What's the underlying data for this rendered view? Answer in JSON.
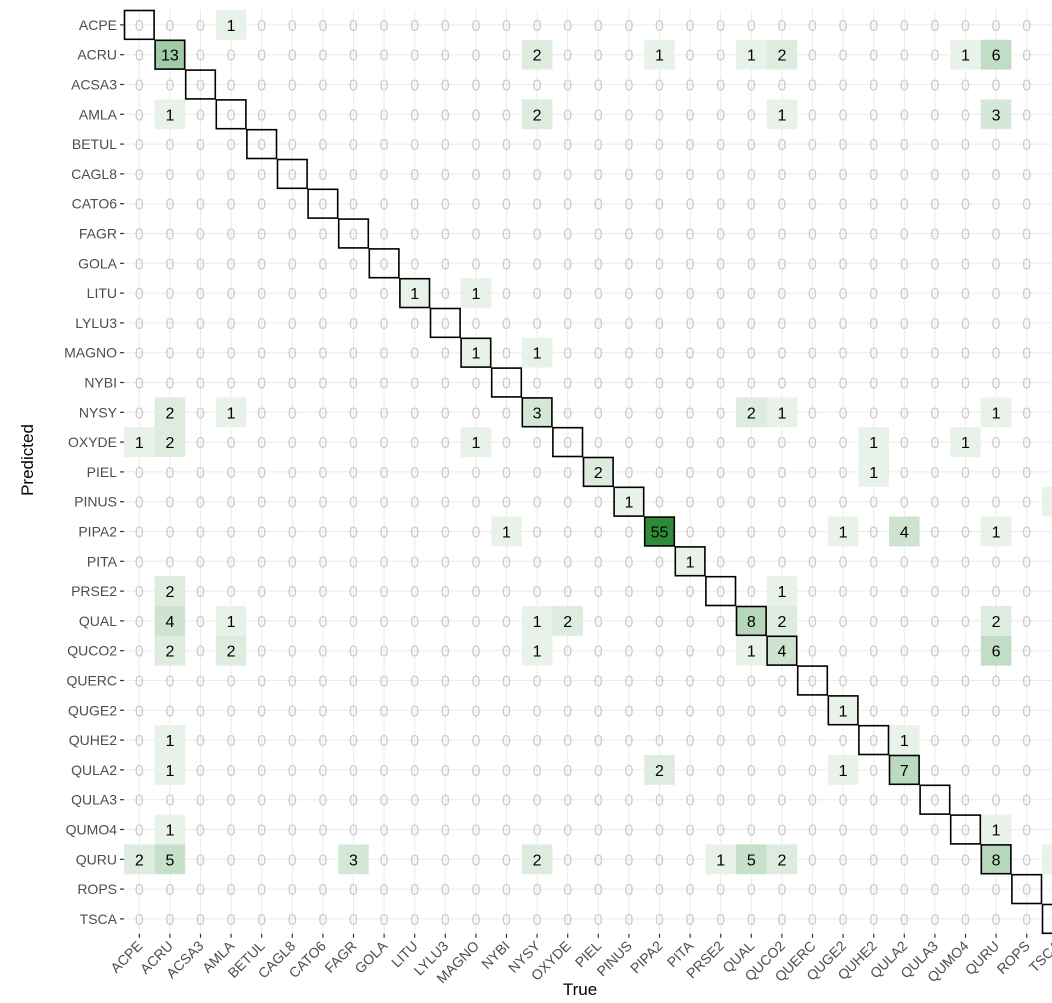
{
  "chart_data": {
    "type": "heatmap",
    "title": "",
    "xlabel": "True",
    "ylabel": "Predicted",
    "grid": true,
    "legend": "none",
    "colors": {
      "low": "#ffffff",
      "high": "#2e8b3a",
      "zero_text": "#cccccc",
      "count_text": "#000000",
      "diagonal_border": "#000000",
      "grid": "#ebebeb"
    },
    "categories": [
      "ACPE",
      "ACRU",
      "ACSA3",
      "AMLA",
      "BETUL",
      "CAGL8",
      "CATO6",
      "FAGR",
      "GOLA",
      "LITU",
      "LYLU3",
      "MAGNO",
      "NYBI",
      "NYSY",
      "OXYDE",
      "PIEL",
      "PINUS",
      "PIPA2",
      "PITA",
      "PRSE2",
      "QUAL",
      "QUCO2",
      "QUERC",
      "QUGE2",
      "QUHE2",
      "QULA2",
      "QULA3",
      "QUMO4",
      "QURU",
      "ROPS",
      "TSCA"
    ],
    "max_value": 55,
    "cells": [
      {
        "p": 0,
        "t": 3,
        "v": 1
      },
      {
        "p": 1,
        "t": 1,
        "v": 13
      },
      {
        "p": 1,
        "t": 13,
        "v": 2
      },
      {
        "p": 1,
        "t": 17,
        "v": 1
      },
      {
        "p": 1,
        "t": 20,
        "v": 1
      },
      {
        "p": 1,
        "t": 21,
        "v": 2
      },
      {
        "p": 1,
        "t": 27,
        "v": 1
      },
      {
        "p": 1,
        "t": 28,
        "v": 6
      },
      {
        "p": 3,
        "t": 1,
        "v": 1
      },
      {
        "p": 3,
        "t": 13,
        "v": 2
      },
      {
        "p": 3,
        "t": 21,
        "v": 1
      },
      {
        "p": 3,
        "t": 28,
        "v": 3
      },
      {
        "p": 9,
        "t": 9,
        "v": 1
      },
      {
        "p": 9,
        "t": 11,
        "v": 1
      },
      {
        "p": 11,
        "t": 11,
        "v": 1
      },
      {
        "p": 11,
        "t": 13,
        "v": 1
      },
      {
        "p": 13,
        "t": 1,
        "v": 2
      },
      {
        "p": 13,
        "t": 3,
        "v": 1
      },
      {
        "p": 13,
        "t": 13,
        "v": 3
      },
      {
        "p": 13,
        "t": 20,
        "v": 2
      },
      {
        "p": 13,
        "t": 21,
        "v": 1
      },
      {
        "p": 13,
        "t": 28,
        "v": 1
      },
      {
        "p": 14,
        "t": 0,
        "v": 1
      },
      {
        "p": 14,
        "t": 1,
        "v": 2
      },
      {
        "p": 14,
        "t": 11,
        "v": 1
      },
      {
        "p": 14,
        "t": 24,
        "v": 1
      },
      {
        "p": 14,
        "t": 27,
        "v": 1
      },
      {
        "p": 15,
        "t": 15,
        "v": 2
      },
      {
        "p": 15,
        "t": 24,
        "v": 1
      },
      {
        "p": 16,
        "t": 16,
        "v": 1
      },
      {
        "p": 16,
        "t": 30,
        "v": 1
      },
      {
        "p": 17,
        "t": 12,
        "v": 1
      },
      {
        "p": 17,
        "t": 17,
        "v": 55
      },
      {
        "p": 17,
        "t": 23,
        "v": 1
      },
      {
        "p": 17,
        "t": 25,
        "v": 4
      },
      {
        "p": 17,
        "t": 28,
        "v": 1
      },
      {
        "p": 18,
        "t": 18,
        "v": 1
      },
      {
        "p": 19,
        "t": 1,
        "v": 2
      },
      {
        "p": 19,
        "t": 21,
        "v": 1
      },
      {
        "p": 20,
        "t": 1,
        "v": 4
      },
      {
        "p": 20,
        "t": 3,
        "v": 1
      },
      {
        "p": 20,
        "t": 13,
        "v": 1
      },
      {
        "p": 20,
        "t": 14,
        "v": 2
      },
      {
        "p": 20,
        "t": 20,
        "v": 8
      },
      {
        "p": 20,
        "t": 21,
        "v": 2
      },
      {
        "p": 20,
        "t": 28,
        "v": 2
      },
      {
        "p": 21,
        "t": 1,
        "v": 2
      },
      {
        "p": 21,
        "t": 3,
        "v": 2
      },
      {
        "p": 21,
        "t": 13,
        "v": 1
      },
      {
        "p": 21,
        "t": 20,
        "v": 1
      },
      {
        "p": 21,
        "t": 21,
        "v": 4
      },
      {
        "p": 21,
        "t": 28,
        "v": 6
      },
      {
        "p": 23,
        "t": 23,
        "v": 1
      },
      {
        "p": 24,
        "t": 1,
        "v": 1
      },
      {
        "p": 24,
        "t": 25,
        "v": 1
      },
      {
        "p": 25,
        "t": 1,
        "v": 1
      },
      {
        "p": 25,
        "t": 17,
        "v": 2
      },
      {
        "p": 25,
        "t": 23,
        "v": 1
      },
      {
        "p": 25,
        "t": 25,
        "v": 7
      },
      {
        "p": 27,
        "t": 1,
        "v": 1
      },
      {
        "p": 27,
        "t": 28,
        "v": 1
      },
      {
        "p": 28,
        "t": 0,
        "v": 2
      },
      {
        "p": 28,
        "t": 1,
        "v": 5
      },
      {
        "p": 28,
        "t": 7,
        "v": 3
      },
      {
        "p": 28,
        "t": 13,
        "v": 2
      },
      {
        "p": 28,
        "t": 19,
        "v": 1
      },
      {
        "p": 28,
        "t": 20,
        "v": 5
      },
      {
        "p": 28,
        "t": 21,
        "v": 2
      },
      {
        "p": 28,
        "t": 28,
        "v": 8
      },
      {
        "p": 28,
        "t": 30,
        "v": 1
      }
    ]
  }
}
